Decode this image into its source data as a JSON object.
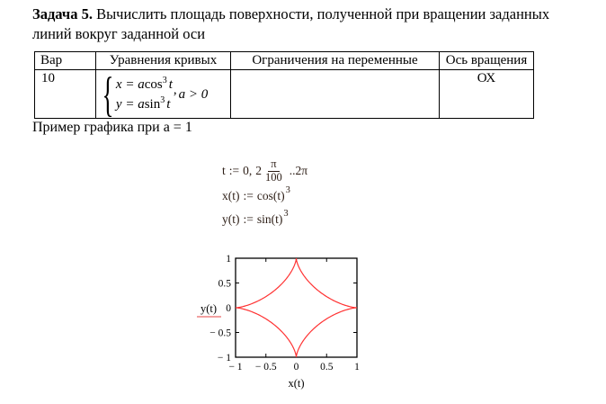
{
  "title": {
    "bold": "Задача 5.",
    "rest": " Вычислить площадь поверхности, полученной при вращении заданных линий вокруг заданной оси"
  },
  "table": {
    "headers": [
      "Вар",
      "Уравнения кривых",
      "Ограничения на переменные",
      "Ось вращения"
    ],
    "row": {
      "variant": "10",
      "constraints": "",
      "axis": "ОХ",
      "system": {
        "line1": {
          "lhs": "x",
          "rel": " = ",
          "coef": "a",
          "func": "cos",
          "power": "3",
          "arg": "t"
        },
        "line2": {
          "lhs": "y",
          "rel": " = ",
          "coef": "a",
          "func": "sin",
          "power": "3",
          "arg": "t"
        },
        "comma": ",",
        "condition": "a > 0"
      }
    }
  },
  "caption": "Пример графика при a = 1",
  "mathcad": {
    "range_def": {
      "lhs": "t",
      "assign": ":=",
      "start": "0,",
      "coef": "2",
      "frac_num": "π",
      "frac_den": "100",
      "dots": "..",
      "end": "2π"
    },
    "x_def": {
      "lhs": "x(t)",
      "assign": ":=",
      "body": "cos(t)",
      "power": "3"
    },
    "y_def": {
      "lhs": "y(t)",
      "assign": ":=",
      "body": "sin(t)",
      "power": "3"
    }
  },
  "chart_data": {
    "type": "line",
    "title": "",
    "xlabel": "x(t)",
    "ylabel": "y(t)",
    "xlim": [
      -1,
      1
    ],
    "ylim": [
      -1,
      1
    ],
    "x_ticks": [
      -1,
      -0.5,
      0,
      0.5,
      1
    ],
    "y_ticks": [
      -1,
      -0.5,
      0,
      0.5,
      1
    ],
    "x_tick_labels": [
      "− 1",
      "− 0.5",
      "0",
      "0.5",
      "1"
    ],
    "y_tick_labels": [
      "− 1",
      "− 0.5",
      "0",
      "0.5",
      "1"
    ],
    "grid": false,
    "legend": "none",
    "curve": {
      "kind": "parametric",
      "x_formula": "cos(t)^3",
      "y_formula": "sin(t)^3",
      "t_min": 0,
      "t_max": 6.283185307,
      "samples": 400
    },
    "cusps": [
      [
        1,
        0
      ],
      [
        0,
        1
      ],
      [
        -1,
        0
      ],
      [
        0,
        -1
      ]
    ],
    "series_color": "#ff3232",
    "frame_color": "#000000",
    "ylabel_underline_color": "#ee8282"
  }
}
